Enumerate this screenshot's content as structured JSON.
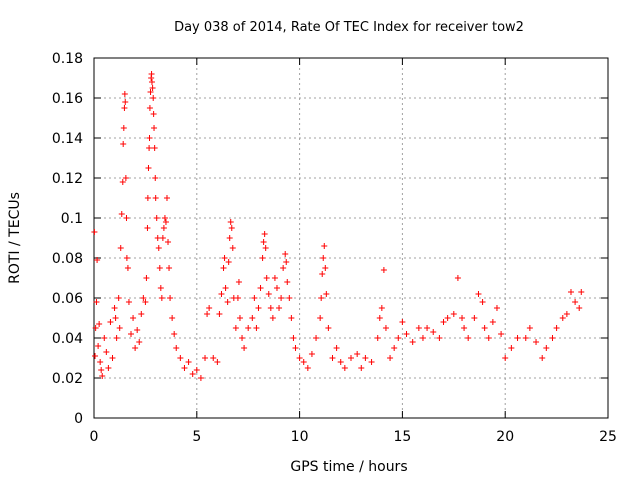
{
  "chart_data": {
    "type": "scatter",
    "title": "Day 038 of 2014, Rate Of TEC Index for receiver tow2",
    "xlabel": "GPS time / hours",
    "ylabel": "ROTI / TECUs",
    "xlim": [
      0,
      25
    ],
    "ylim": [
      0,
      0.18
    ],
    "xticks": [
      0,
      5,
      10,
      15,
      20,
      25
    ],
    "yticks": [
      0,
      0.02,
      0.04,
      0.06,
      0.08,
      0.1,
      0.12,
      0.14,
      0.16,
      0.18
    ],
    "xtick_labels": [
      "0",
      "5",
      "10",
      "15",
      "20",
      "25"
    ],
    "ytick_labels": [
      "0",
      "0.02",
      "0.04",
      "0.06",
      "0.08",
      "0.1",
      "0.12",
      "0.14",
      "0.16",
      "0.18"
    ],
    "grid": true,
    "marker": "+",
    "color": "#ff0000",
    "series": [
      {
        "name": "ROTI",
        "points": [
          [
            0.02,
            0.093
          ],
          [
            0.05,
            0.031
          ],
          [
            0.08,
            0.045
          ],
          [
            0.12,
            0.058
          ],
          [
            0.15,
            0.079
          ],
          [
            0.2,
            0.036
          ],
          [
            0.25,
            0.047
          ],
          [
            0.3,
            0.028
          ],
          [
            0.35,
            0.024
          ],
          [
            0.4,
            0.021
          ],
          [
            0.5,
            0.04
          ],
          [
            0.6,
            0.033
          ],
          [
            0.7,
            0.025
          ],
          [
            0.8,
            0.048
          ],
          [
            0.9,
            0.03
          ],
          [
            1.0,
            0.055
          ],
          [
            1.05,
            0.05
          ],
          [
            1.1,
            0.04
          ],
          [
            1.2,
            0.06
          ],
          [
            1.25,
            0.045
          ],
          [
            1.3,
            0.085
          ],
          [
            1.35,
            0.102
          ],
          [
            1.4,
            0.118
          ],
          [
            1.42,
            0.137
          ],
          [
            1.45,
            0.145
          ],
          [
            1.48,
            0.155
          ],
          [
            1.5,
            0.162
          ],
          [
            1.52,
            0.158
          ],
          [
            1.55,
            0.12
          ],
          [
            1.58,
            0.1
          ],
          [
            1.6,
            0.08
          ],
          [
            1.65,
            0.075
          ],
          [
            1.7,
            0.058
          ],
          [
            1.8,
            0.042
          ],
          [
            1.9,
            0.05
          ],
          [
            2.0,
            0.035
          ],
          [
            2.1,
            0.044
          ],
          [
            2.2,
            0.038
          ],
          [
            2.3,
            0.052
          ],
          [
            2.4,
            0.06
          ],
          [
            2.5,
            0.058
          ],
          [
            2.55,
            0.07
          ],
          [
            2.6,
            0.095
          ],
          [
            2.62,
            0.11
          ],
          [
            2.65,
            0.125
          ],
          [
            2.68,
            0.135
          ],
          [
            2.7,
            0.14
          ],
          [
            2.72,
            0.155
          ],
          [
            2.75,
            0.163
          ],
          [
            2.78,
            0.17
          ],
          [
            2.8,
            0.172
          ],
          [
            2.82,
            0.168
          ],
          [
            2.85,
            0.165
          ],
          [
            2.88,
            0.16
          ],
          [
            2.9,
            0.152
          ],
          [
            2.92,
            0.145
          ],
          [
            2.95,
            0.135
          ],
          [
            2.98,
            0.12
          ],
          [
            3.0,
            0.11
          ],
          [
            3.05,
            0.1
          ],
          [
            3.1,
            0.09
          ],
          [
            3.15,
            0.085
          ],
          [
            3.2,
            0.075
          ],
          [
            3.25,
            0.065
          ],
          [
            3.3,
            0.06
          ],
          [
            3.35,
            0.09
          ],
          [
            3.4,
            0.095
          ],
          [
            3.45,
            0.1
          ],
          [
            3.5,
            0.098
          ],
          [
            3.55,
            0.11
          ],
          [
            3.6,
            0.088
          ],
          [
            3.65,
            0.075
          ],
          [
            3.7,
            0.06
          ],
          [
            3.8,
            0.05
          ],
          [
            3.9,
            0.042
          ],
          [
            4.0,
            0.035
          ],
          [
            4.2,
            0.03
          ],
          [
            4.4,
            0.025
          ],
          [
            4.6,
            0.028
          ],
          [
            4.8,
            0.022
          ],
          [
            5.0,
            0.024
          ],
          [
            5.2,
            0.02
          ],
          [
            5.4,
            0.03
          ],
          [
            5.5,
            0.052
          ],
          [
            5.6,
            0.055
          ],
          [
            5.8,
            0.03
          ],
          [
            6.0,
            0.028
          ],
          [
            6.1,
            0.052
          ],
          [
            6.2,
            0.062
          ],
          [
            6.3,
            0.075
          ],
          [
            6.35,
            0.08
          ],
          [
            6.4,
            0.065
          ],
          [
            6.5,
            0.058
          ],
          [
            6.55,
            0.078
          ],
          [
            6.6,
            0.09
          ],
          [
            6.65,
            0.098
          ],
          [
            6.7,
            0.095
          ],
          [
            6.75,
            0.085
          ],
          [
            6.8,
            0.06
          ],
          [
            6.9,
            0.045
          ],
          [
            7.0,
            0.06
          ],
          [
            7.05,
            0.068
          ],
          [
            7.1,
            0.05
          ],
          [
            7.2,
            0.04
          ],
          [
            7.3,
            0.035
          ],
          [
            7.5,
            0.045
          ],
          [
            7.7,
            0.05
          ],
          [
            7.8,
            0.06
          ],
          [
            7.9,
            0.045
          ],
          [
            8.0,
            0.055
          ],
          [
            8.1,
            0.065
          ],
          [
            8.2,
            0.08
          ],
          [
            8.25,
            0.088
          ],
          [
            8.3,
            0.092
          ],
          [
            8.35,
            0.085
          ],
          [
            8.4,
            0.07
          ],
          [
            8.5,
            0.062
          ],
          [
            8.6,
            0.055
          ],
          [
            8.7,
            0.05
          ],
          [
            8.8,
            0.07
          ],
          [
            8.9,
            0.065
          ],
          [
            9.0,
            0.055
          ],
          [
            9.1,
            0.06
          ],
          [
            9.2,
            0.075
          ],
          [
            9.3,
            0.082
          ],
          [
            9.35,
            0.078
          ],
          [
            9.4,
            0.068
          ],
          [
            9.5,
            0.06
          ],
          [
            9.6,
            0.05
          ],
          [
            9.7,
            0.04
          ],
          [
            9.8,
            0.035
          ],
          [
            10.0,
            0.03
          ],
          [
            10.2,
            0.028
          ],
          [
            10.4,
            0.025
          ],
          [
            10.6,
            0.032
          ],
          [
            10.8,
            0.04
          ],
          [
            11.0,
            0.05
          ],
          [
            11.05,
            0.06
          ],
          [
            11.1,
            0.072
          ],
          [
            11.15,
            0.08
          ],
          [
            11.2,
            0.086
          ],
          [
            11.25,
            0.075
          ],
          [
            11.3,
            0.062
          ],
          [
            11.4,
            0.045
          ],
          [
            11.6,
            0.03
          ],
          [
            11.8,
            0.035
          ],
          [
            12.0,
            0.028
          ],
          [
            12.2,
            0.025
          ],
          [
            12.5,
            0.03
          ],
          [
            12.8,
            0.032
          ],
          [
            13.0,
            0.025
          ],
          [
            13.2,
            0.03
          ],
          [
            13.5,
            0.028
          ],
          [
            13.8,
            0.04
          ],
          [
            13.9,
            0.05
          ],
          [
            14.0,
            0.055
          ],
          [
            14.1,
            0.074
          ],
          [
            14.2,
            0.045
          ],
          [
            14.4,
            0.03
          ],
          [
            14.6,
            0.035
          ],
          [
            14.8,
            0.04
          ],
          [
            15.0,
            0.048
          ],
          [
            15.2,
            0.042
          ],
          [
            15.5,
            0.038
          ],
          [
            15.8,
            0.045
          ],
          [
            16.0,
            0.04
          ],
          [
            16.2,
            0.045
          ],
          [
            16.5,
            0.043
          ],
          [
            16.8,
            0.04
          ],
          [
            17.0,
            0.048
          ],
          [
            17.2,
            0.05
          ],
          [
            17.5,
            0.052
          ],
          [
            17.7,
            0.07
          ],
          [
            17.9,
            0.05
          ],
          [
            18.0,
            0.045
          ],
          [
            18.2,
            0.04
          ],
          [
            18.5,
            0.05
          ],
          [
            18.7,
            0.062
          ],
          [
            18.9,
            0.058
          ],
          [
            19.0,
            0.045
          ],
          [
            19.2,
            0.04
          ],
          [
            19.4,
            0.048
          ],
          [
            19.6,
            0.055
          ],
          [
            19.8,
            0.042
          ],
          [
            20.0,
            0.03
          ],
          [
            20.3,
            0.035
          ],
          [
            20.6,
            0.04
          ],
          [
            21.0,
            0.04
          ],
          [
            21.2,
            0.045
          ],
          [
            21.5,
            0.038
          ],
          [
            21.8,
            0.03
          ],
          [
            22.0,
            0.035
          ],
          [
            22.3,
            0.04
          ],
          [
            22.5,
            0.045
          ],
          [
            22.8,
            0.05
          ],
          [
            23.0,
            0.052
          ],
          [
            23.2,
            0.063
          ],
          [
            23.4,
            0.058
          ],
          [
            23.6,
            0.055
          ],
          [
            23.7,
            0.063
          ]
        ]
      }
    ]
  }
}
